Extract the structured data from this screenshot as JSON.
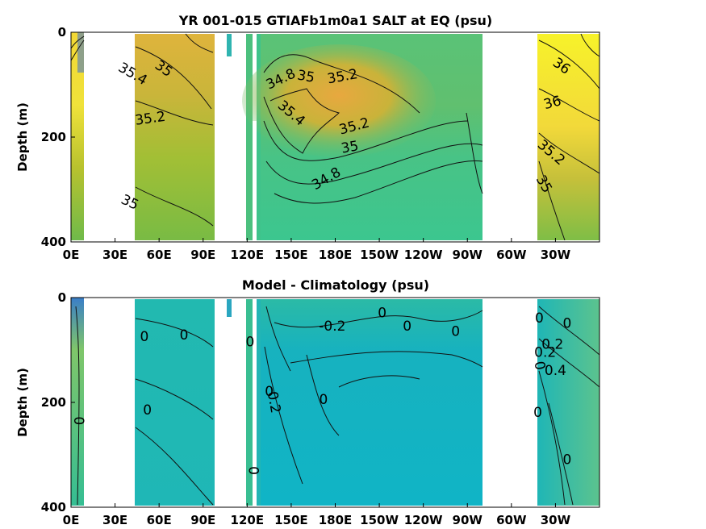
{
  "chart_data": [
    {
      "type": "heatmap",
      "title": "YR 001-015 GTIAFb1m0a1 SALT at EQ (psu)",
      "xlabel": "",
      "ylabel": "Depth (m)",
      "x_ticks": [
        "0E",
        "30E",
        "60E",
        "90E",
        "120E",
        "150E",
        "180E",
        "150W",
        "120W",
        "90W",
        "60W",
        "30W"
      ],
      "x_tick_lon": [
        0,
        30,
        60,
        90,
        120,
        150,
        180,
        210,
        240,
        270,
        300,
        330
      ],
      "xlim": [
        0,
        360
      ],
      "y_ticks": [
        "0",
        "200",
        "400"
      ],
      "y_tick_values": [
        0,
        200,
        400
      ],
      "ylim": [
        0,
        400
      ],
      "y_reversed": true,
      "contour_labels": [
        {
          "text": "35.4",
          "lon": 42,
          "depth": 80,
          "rot": 30
        },
        {
          "text": "35",
          "lon": 63,
          "depth": 70,
          "rot": 35
        },
        {
          "text": "35.2",
          "lon": 54,
          "depth": 165,
          "rot": -8
        },
        {
          "text": "35",
          "lon": 40,
          "depth": 325,
          "rot": 25
        },
        {
          "text": "34.8",
          "lon": 143,
          "depth": 90,
          "rot": -25
        },
        {
          "text": "35",
          "lon": 160,
          "depth": 85,
          "rot": 10
        },
        {
          "text": "35.2",
          "lon": 185,
          "depth": 85,
          "rot": -10
        },
        {
          "text": "35.4",
          "lon": 150,
          "depth": 155,
          "rot": 40
        },
        {
          "text": "35.2",
          "lon": 193,
          "depth": 180,
          "rot": -15
        },
        {
          "text": "35",
          "lon": 190,
          "depth": 220,
          "rot": -10
        },
        {
          "text": "34.8",
          "lon": 174,
          "depth": 280,
          "rot": -30
        },
        {
          "text": "36",
          "lon": 334,
          "depth": 65,
          "rot": 35
        },
        {
          "text": "36",
          "lon": 328,
          "depth": 135,
          "rot": -15
        },
        {
          "text": "35.2",
          "lon": 327,
          "depth": 230,
          "rot": 40
        },
        {
          "text": "35",
          "lon": 322,
          "depth": 290,
          "rot": 60
        }
      ]
    },
    {
      "type": "heatmap",
      "title": "Model - Climatology (psu)",
      "xlabel": "",
      "ylabel": "Depth (m)",
      "x_ticks": [
        "0E",
        "30E",
        "60E",
        "90E",
        "120E",
        "150E",
        "180E",
        "150W",
        "120W",
        "90W",
        "60W",
        "30W"
      ],
      "x_tick_lon": [
        0,
        30,
        60,
        90,
        120,
        150,
        180,
        210,
        240,
        270,
        300,
        330
      ],
      "xlim": [
        0,
        360
      ],
      "y_ticks": [
        "0",
        "200",
        "400"
      ],
      "y_tick_values": [
        0,
        200,
        400
      ],
      "ylim": [
        0,
        400
      ],
      "y_reversed": true,
      "contour_labels": [
        {
          "text": "0",
          "lon": 50,
          "depth": 75,
          "rot": 0
        },
        {
          "text": "0",
          "lon": 77,
          "depth": 72,
          "rot": 0
        },
        {
          "text": "0",
          "lon": 52,
          "depth": 215,
          "rot": 0
        },
        {
          "text": "0",
          "lon": 5,
          "depth": 235,
          "rot": 90
        },
        {
          "text": "0",
          "lon": 122,
          "depth": 85,
          "rot": 0
        },
        {
          "text": "0",
          "lon": 135,
          "depth": 180,
          "rot": 0
        },
        {
          "text": "0.2",
          "lon": 138,
          "depth": 200,
          "rot": 80
        },
        {
          "text": "0",
          "lon": 172,
          "depth": 195,
          "rot": 0
        },
        {
          "text": "-0.2",
          "lon": 178,
          "depth": 55,
          "rot": 0
        },
        {
          "text": "0",
          "lon": 212,
          "depth": 30,
          "rot": 0
        },
        {
          "text": "0",
          "lon": 229,
          "depth": 55,
          "rot": 0
        },
        {
          "text": "0",
          "lon": 262,
          "depth": 65,
          "rot": 0
        },
        {
          "text": "0",
          "lon": 124,
          "depth": 330,
          "rot": 90
        },
        {
          "text": "0",
          "lon": 319,
          "depth": 40,
          "rot": 0
        },
        {
          "text": "0.2",
          "lon": 328,
          "depth": 90,
          "rot": 0
        },
        {
          "text": "0.4",
          "lon": 330,
          "depth": 140,
          "rot": 0
        },
        {
          "text": "0.2",
          "lon": 323,
          "depth": 105,
          "rot": 0
        },
        {
          "text": "0",
          "lon": 338,
          "depth": 50,
          "rot": 0
        },
        {
          "text": "0",
          "lon": 319,
          "depth": 130,
          "rot": 80
        },
        {
          "text": "0",
          "lon": 318,
          "depth": 220,
          "rot": 0
        },
        {
          "text": "0",
          "lon": 338,
          "depth": 310,
          "rot": 0
        }
      ]
    }
  ]
}
